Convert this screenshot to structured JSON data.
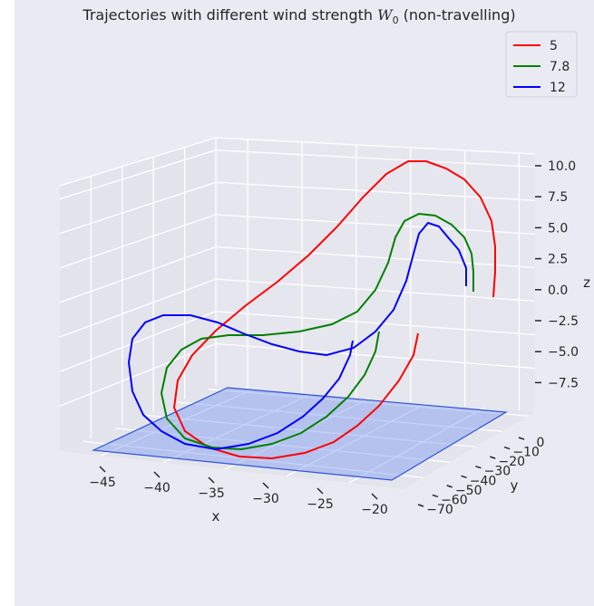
{
  "chart_data": {
    "type": "line",
    "dimension": "3d",
    "title": "Trajectories with different wind strength",
    "title_symbol": "W",
    "title_symbol_subscript": "0",
    "title_suffix": "(non-travelling)",
    "xlabel": "x",
    "ylabel": "y",
    "zlabel": "z",
    "x_ticks": [
      "−45",
      "−40",
      "−35",
      "−30",
      "−25",
      "−20"
    ],
    "y_ticks": [
      "−70",
      "−60",
      "−50",
      "−40",
      "−30",
      "−20",
      "−10",
      "0"
    ],
    "z_ticks": [
      "10.0",
      "7.5",
      "5.0",
      "2.5",
      "0.0",
      "−2.5",
      "−5.0",
      "−7.5"
    ],
    "legend": {
      "placement": "top-right"
    },
    "background": "#eaeaf2",
    "grid": true,
    "plane": {
      "description": "",
      "color": "#6e8ff0"
    },
    "series": [
      {
        "name": "5",
        "color": "#ff0000"
      },
      {
        "name": "7.8",
        "color": "#008000"
      },
      {
        "name": "12",
        "color": "#0000ff"
      }
    ]
  }
}
